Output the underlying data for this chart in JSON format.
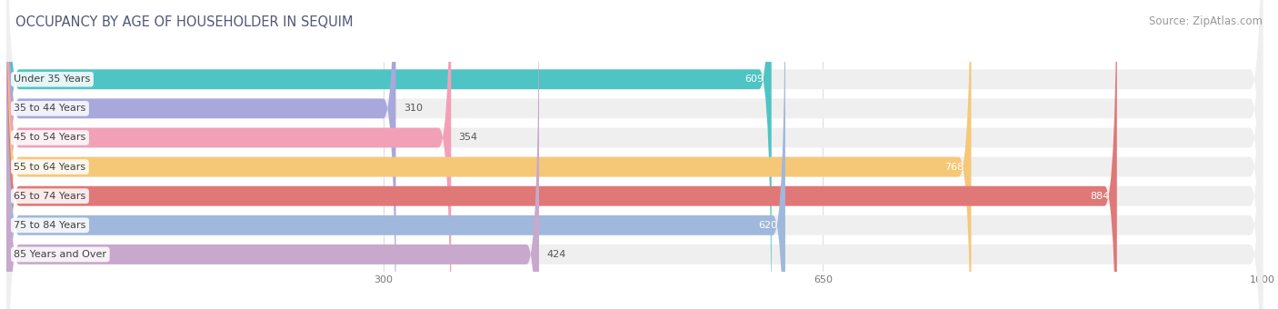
{
  "title": "OCCUPANCY BY AGE OF HOUSEHOLDER IN SEQUIM",
  "source": "Source: ZipAtlas.com",
  "categories": [
    "Under 35 Years",
    "35 to 44 Years",
    "45 to 54 Years",
    "55 to 64 Years",
    "65 to 74 Years",
    "75 to 84 Years",
    "85 Years and Over"
  ],
  "values": [
    609,
    310,
    354,
    768,
    884,
    620,
    424
  ],
  "colors": [
    "#4EC4C4",
    "#A8A8DC",
    "#F2A0B8",
    "#F5C878",
    "#E07878",
    "#A0B8DC",
    "#C8A8CC"
  ],
  "bar_bg_color": "#EFEFEF",
  "xlim_max": 1000,
  "xticks": [
    300,
    650,
    1000
  ],
  "title_color": "#505878",
  "title_fontsize": 10.5,
  "source_fontsize": 8.5,
  "label_fontsize": 8,
  "value_fontsize": 8,
  "bar_height": 0.68,
  "background_color": "#FFFFFF",
  "value_inside_threshold": 450,
  "grid_color": "#DDDDDD"
}
